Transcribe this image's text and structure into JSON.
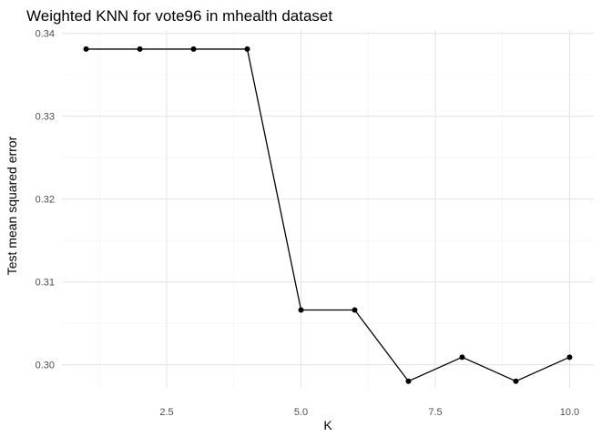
{
  "chart_data": {
    "type": "line",
    "title": "Weighted KNN for vote96 in mhealth dataset",
    "xlabel": "K",
    "ylabel": "Test mean squared error",
    "xlim": [
      0.55,
      10.45
    ],
    "ylim": [
      0.2972,
      0.3404
    ],
    "x_ticks": [
      2.5,
      5.0,
      7.5,
      10.0
    ],
    "x_tick_labels": [
      "2.5",
      "5.0",
      "7.5",
      "10.0"
    ],
    "y_ticks": [
      0.3,
      0.31,
      0.32,
      0.33,
      0.34
    ],
    "y_tick_labels": [
      "0.30",
      "0.31",
      "0.32",
      "0.33",
      "0.34"
    ],
    "grid": true,
    "legend": "none",
    "series": [
      {
        "x": [
          1,
          2,
          3,
          4,
          5,
          6,
          7,
          8,
          9,
          10
        ],
        "values": [
          0.3381,
          0.3381,
          0.3381,
          0.3381,
          0.3066,
          0.3066,
          0.298,
          0.3009,
          0.298,
          0.3009
        ],
        "color": "#000000"
      }
    ]
  }
}
